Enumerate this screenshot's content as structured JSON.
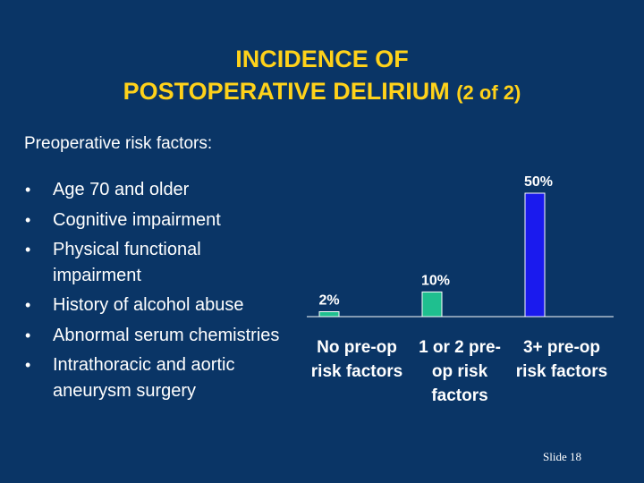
{
  "slide": {
    "title_line1": "INCIDENCE OF",
    "title_line2": "POSTOPERATIVE DELIRIUM",
    "title_suffix": "(2 of 2)",
    "subtitle": "Preoperative risk factors:",
    "bullets": [
      "Age 70 and older",
      "Cognitive impairment",
      "Physical functional impairment",
      "History of alcohol abuse",
      "Abnormal serum chemistries",
      "Intrathoracic and aortic aneurysm surgery"
    ],
    "slide_number": "Slide 18"
  },
  "chart_data": {
    "type": "bar",
    "categories": [
      "No pre-op risk factors",
      "1 or 2 pre-op risk factors",
      "3+ pre-op risk factors"
    ],
    "category_lines": [
      [
        "No pre-op",
        "risk factors"
      ],
      [
        "1 or 2 pre-",
        "op risk",
        "factors"
      ],
      [
        "3+ pre-op",
        "risk factors"
      ]
    ],
    "values": [
      2,
      10,
      50
    ],
    "value_labels": [
      "2%",
      "10%",
      "50%"
    ],
    "bar_colors": [
      "#1fbf8f",
      "#1fbf8f",
      "#1a1aee"
    ],
    "ylim": [
      0,
      55
    ],
    "grid": false
  }
}
